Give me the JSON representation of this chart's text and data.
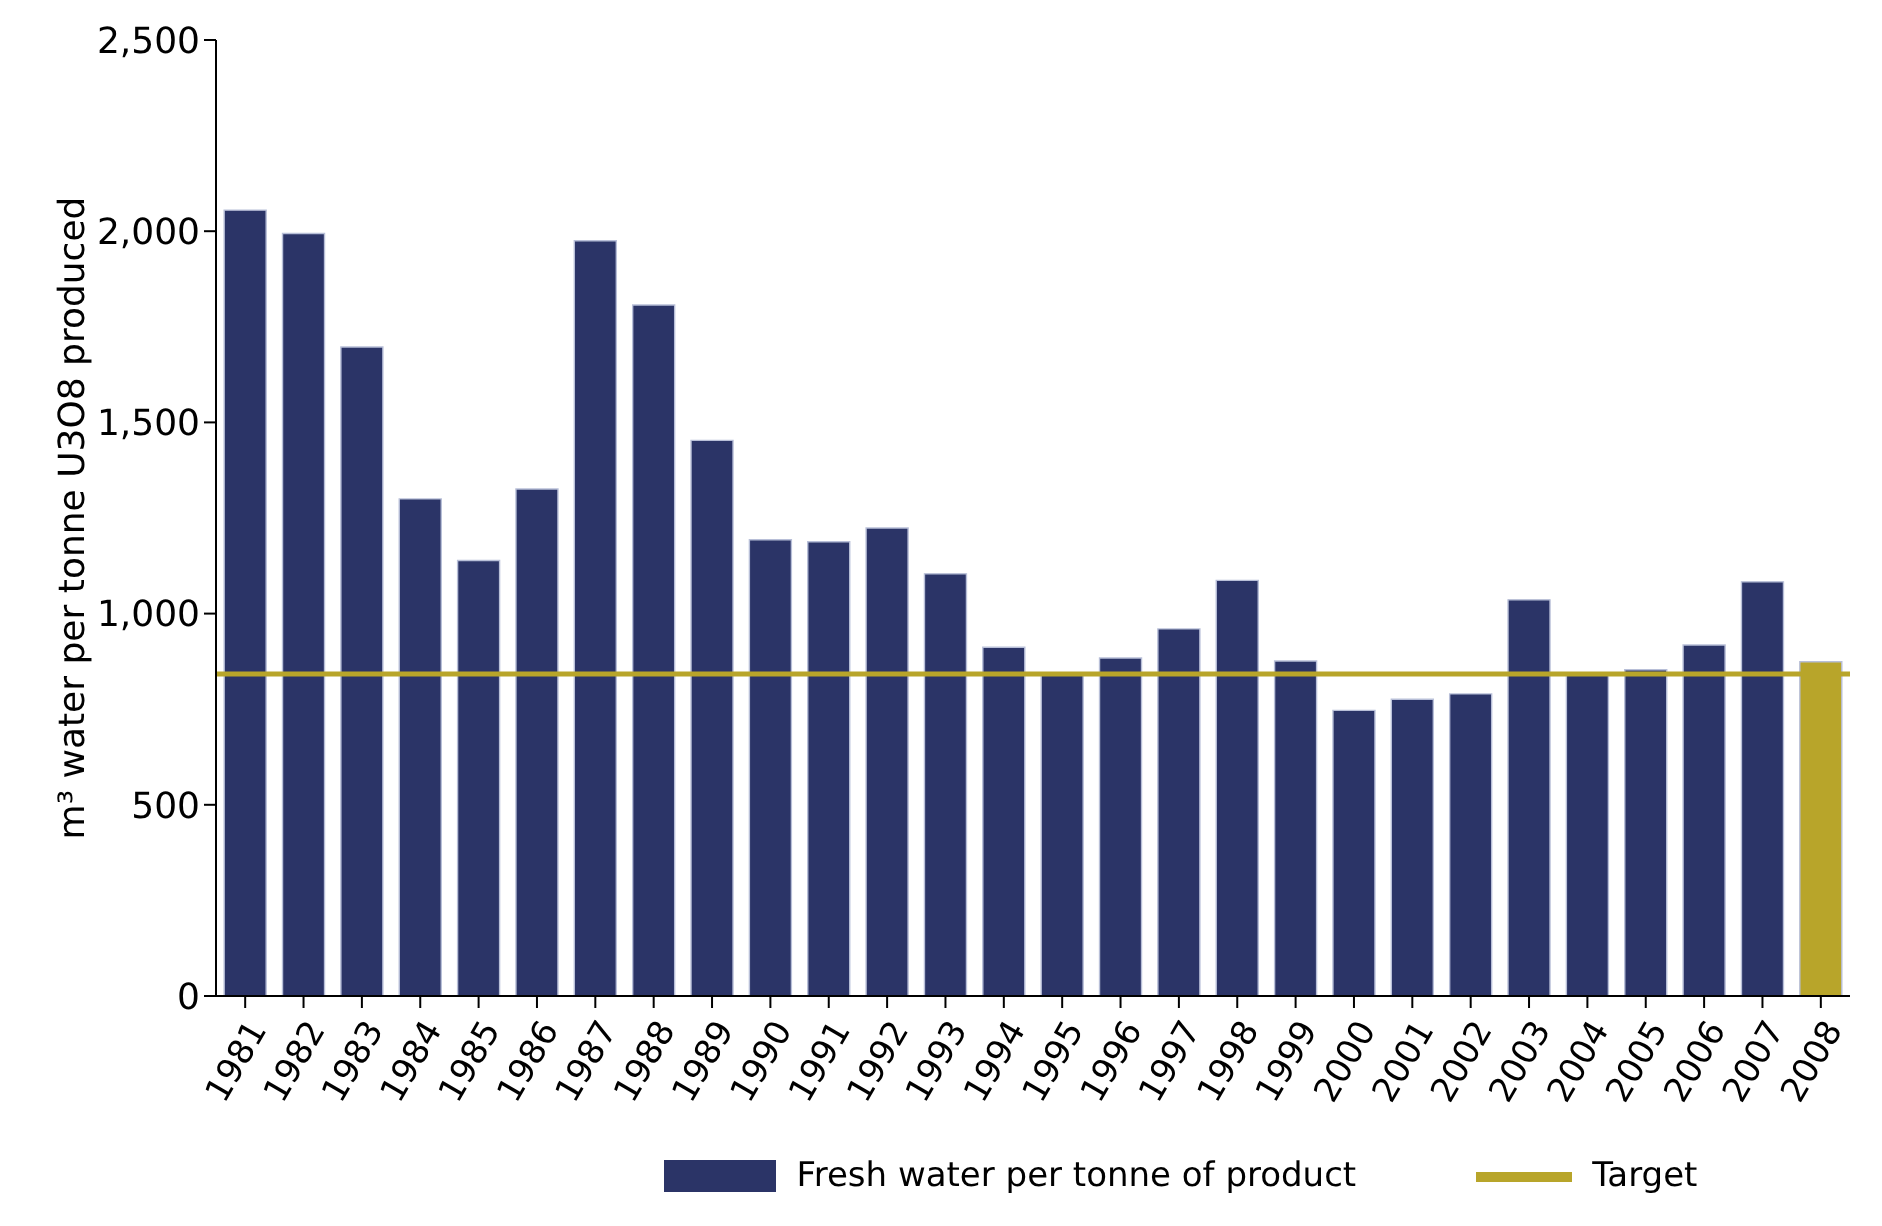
{
  "chart_data": {
    "type": "bar",
    "ylabel": "m³ water per tonne U3O8 produced",
    "categories": [
      "1981",
      "1982",
      "1983",
      "1984",
      "1985",
      "1986",
      "1987",
      "1988",
      "1989",
      "1990",
      "1991",
      "1992",
      "1993",
      "1994",
      "1995",
      "1996",
      "1997",
      "1998",
      "1999",
      "2000",
      "2001",
      "2002",
      "2003",
      "2004",
      "2005",
      "2006",
      "2007",
      "2008"
    ],
    "series": [
      {
        "name": "Fresh water per tonne of product",
        "color": "#2b3467",
        "values": [
          2055,
          1994,
          1697,
          1300,
          1139,
          1326,
          1975,
          1807,
          1453,
          1193,
          1188,
          1224,
          1104,
          912,
          839,
          884,
          960,
          1087,
          876,
          747,
          776,
          790,
          1036,
          839,
          853,
          918,
          1083,
          874
        ],
        "colors": [
          "#2b3467",
          "#2b3467",
          "#2b3467",
          "#2b3467",
          "#2b3467",
          "#2b3467",
          "#2b3467",
          "#2b3467",
          "#2b3467",
          "#2b3467",
          "#2b3467",
          "#2b3467",
          "#2b3467",
          "#2b3467",
          "#2b3467",
          "#2b3467",
          "#2b3467",
          "#2b3467",
          "#2b3467",
          "#2b3467",
          "#2b3467",
          "#2b3467",
          "#2b3467",
          "#2b3467",
          "#2b3467",
          "#2b3467",
          "#2b3467",
          "#b8a52a"
        ]
      }
    ],
    "ylim": [
      0,
      2500
    ],
    "yticks": [
      0,
      500,
      {
        "value": 1000,
        "label": "1,000"
      },
      {
        "value": 1500,
        "label": "1,500"
      },
      {
        "value": 2000,
        "label": "2,000"
      },
      {
        "value": 2500,
        "label": "2,500"
      }
    ],
    "ref_lines": [
      {
        "axis": "y",
        "value": 842,
        "label": "Target",
        "color": "#b8a52a"
      }
    ],
    "grid": false,
    "legend": "bottom"
  }
}
